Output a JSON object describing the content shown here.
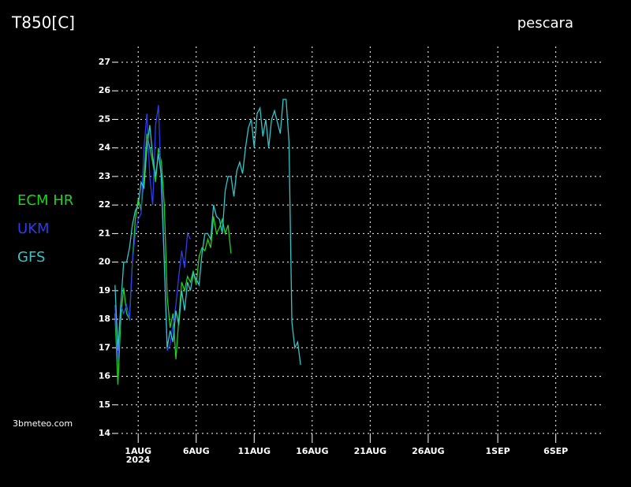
{
  "chart_data": {
    "type": "line",
    "title": "T850[C]",
    "location": "pescara",
    "credit": "3bmeteo.com",
    "year_label": "2024",
    "x": [
      -2,
      -1.75,
      -1.5,
      -1.25,
      -1,
      -0.75,
      -0.5,
      -0.25,
      0,
      0.25,
      0.5,
      0.75,
      1,
      1.25,
      1.5,
      1.75,
      2,
      2.25,
      2.5,
      2.75,
      3,
      3.25,
      3.5,
      3.75,
      4,
      4.25,
      4.5,
      4.75,
      5,
      5.25,
      5.5,
      5.75,
      6,
      6.25,
      6.5,
      6.75,
      7,
      7.25,
      7.5,
      7.75,
      8,
      8.25,
      8.5,
      8.75,
      9,
      9.25,
      9.5,
      9.75,
      10,
      10.25,
      10.5,
      10.75,
      11,
      11.25,
      11.5,
      11.75,
      12,
      12.25,
      12.5,
      12.75,
      13,
      13.25,
      13.5,
      13.75,
      14
    ],
    "series": [
      {
        "name": "ECM HR",
        "color": "#1ed21e",
        "values": [
          18.2,
          15.7,
          18.0,
          19.1,
          18.2,
          18.0,
          20.0,
          21.5,
          22.2,
          21.8,
          23.0,
          24.5,
          24.0,
          23.5,
          22.8,
          24.0,
          23.5,
          22.0,
          18.8,
          17.7,
          18.2,
          16.6,
          18.0,
          19.3,
          19.0,
          19.5,
          19.3,
          19.7,
          19.2,
          20.2,
          20.5,
          20.4,
          20.8,
          20.5,
          21.6,
          21.0,
          21.2,
          21.5,
          21.0,
          21.3,
          20.3,
          null,
          null,
          null,
          null,
          null,
          null,
          null,
          null,
          null,
          null,
          null,
          null,
          null,
          null,
          null,
          null,
          null,
          null,
          null,
          null,
          null,
          null,
          null,
          null
        ]
      },
      {
        "name": "UKM",
        "color": "#2c3cf0",
        "values": [
          18.5,
          16.5,
          18.5,
          18.2,
          18.5,
          18.0,
          20.0,
          21.0,
          21.5,
          21.7,
          24.0,
          25.2,
          23.0,
          22.0,
          24.8,
          25.5,
          22.5,
          20.0,
          16.9,
          17.1,
          17.8,
          18.5,
          19.5,
          20.4,
          19.8,
          21.0,
          20.8,
          null,
          null,
          null,
          null,
          null,
          null,
          null,
          null,
          null,
          null,
          null,
          null,
          null,
          null,
          null,
          null,
          null,
          null,
          null,
          null,
          null,
          null,
          null,
          null,
          null,
          null,
          null,
          null,
          null,
          null,
          null,
          null,
          null,
          null,
          null,
          null,
          null,
          null
        ]
      },
      {
        "name": "GFS",
        "color": "#33c4c8",
        "values": [
          19.2,
          16.9,
          18.5,
          20.0,
          20.0,
          20.5,
          21.3,
          21.8,
          22.0,
          22.8,
          22.6,
          24.0,
          24.8,
          23.7,
          23.0,
          23.8,
          23.0,
          20.0,
          17.0,
          17.6,
          17.2,
          18.3,
          17.8,
          19.0,
          18.3,
          19.3,
          19.0,
          19.6,
          19.4,
          19.2,
          20.3,
          21.0,
          21.0,
          20.8,
          22.0,
          21.6,
          21.5,
          21.0,
          22.5,
          23.0,
          23.0,
          22.3,
          23.2,
          23.5,
          23.1,
          24.0,
          24.7,
          25.0,
          24.0,
          25.2,
          25.4,
          24.4,
          25.0,
          24.0,
          25.0,
          25.3,
          24.9,
          24.5,
          25.7,
          25.7,
          24.2,
          17.9,
          17.0,
          17.2,
          16.4
        ]
      }
    ],
    "xlim": [
      -1.85,
      39.9
    ],
    "xticks": [
      {
        "value": 0,
        "label": "1AUG"
      },
      {
        "value": 5,
        "label": "6AUG"
      },
      {
        "value": 10,
        "label": "11AUG"
      },
      {
        "value": 15,
        "label": "16AUG"
      },
      {
        "value": 20,
        "label": "21AUG"
      },
      {
        "value": 25,
        "label": "26AUG"
      },
      {
        "value": 31,
        "label": "1SEP"
      },
      {
        "value": 36,
        "label": "6SEP"
      }
    ],
    "ylim": [
      14,
      27
    ],
    "yticks": [
      14,
      15,
      16,
      17,
      18,
      19,
      20,
      21,
      22,
      23,
      24,
      25,
      26,
      27
    ],
    "grid": true
  }
}
